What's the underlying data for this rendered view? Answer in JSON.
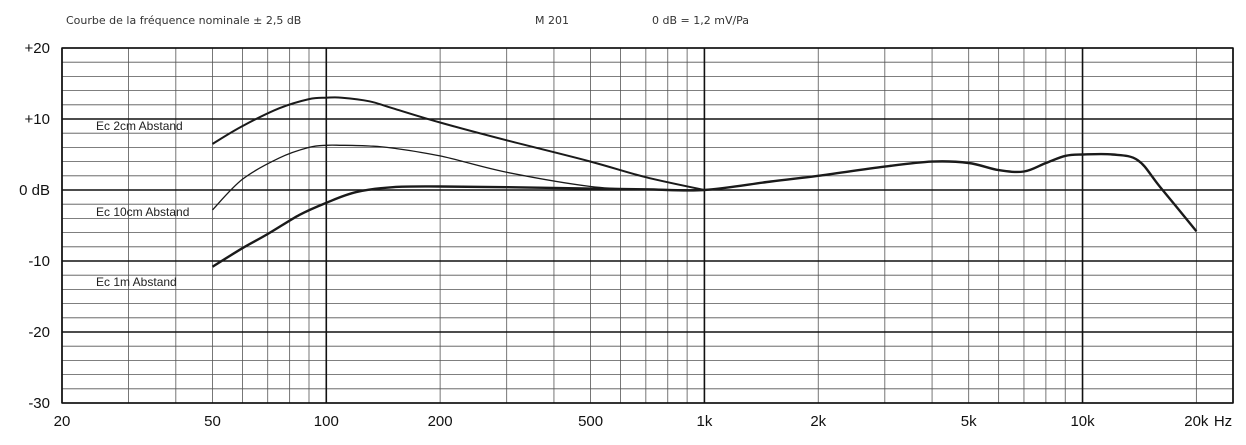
{
  "chart_data": {
    "type": "line",
    "header": {
      "left": "Courbe de la fréquence nominale ± 2,5 dB",
      "middle": "M 201",
      "right": "0 dB = 1,2 mV/Pa"
    },
    "x_scale": "log",
    "xlim": [
      20,
      25000
    ],
    "ylim": [
      -30,
      20
    ],
    "x_ticks": [
      {
        "value": 20,
        "label": "20"
      },
      {
        "value": 50,
        "label": "50"
      },
      {
        "value": 100,
        "label": "100"
      },
      {
        "value": 200,
        "label": "200"
      },
      {
        "value": 500,
        "label": "500"
      },
      {
        "value": 1000,
        "label": "1k"
      },
      {
        "value": 2000,
        "label": "2k"
      },
      {
        "value": 5000,
        "label": "5k"
      },
      {
        "value": 10000,
        "label": "10k"
      },
      {
        "value": 20000,
        "label": "20k"
      }
    ],
    "x_unit": "Hz",
    "y_ticks": [
      {
        "value": 20,
        "label": "+20"
      },
      {
        "value": 10,
        "label": "+10"
      },
      {
        "value": 0,
        "label": "0 dB"
      },
      {
        "value": -10,
        "label": "-10"
      },
      {
        "value": -20,
        "label": "-20"
      },
      {
        "value": -30,
        "label": "-30"
      }
    ],
    "grid": true,
    "series": [
      {
        "name": "2cm Abstand",
        "curve_label": "Ec 2cm Abstand",
        "x": [
          50,
          60,
          75,
          90,
          100,
          110,
          130,
          150,
          200,
          300,
          500,
          700,
          1000
        ],
        "y": [
          6.5,
          9.0,
          11.5,
          12.8,
          13.0,
          13.0,
          12.5,
          11.5,
          9.5,
          7.0,
          4.0,
          1.8,
          0
        ]
      },
      {
        "name": "10cm Abstand",
        "curve_label": "Ec 10cm Abstand",
        "x": [
          50,
          60,
          75,
          90,
          100,
          110,
          130,
          150,
          200,
          300,
          500,
          700,
          1000
        ],
        "y": [
          -2.8,
          1.5,
          4.5,
          6.0,
          6.3,
          6.3,
          6.2,
          5.9,
          4.8,
          2.5,
          0.5,
          0.1,
          0
        ]
      },
      {
        "name": "1m Abstand",
        "curve_label": "Ec 1m Abstand",
        "x": [
          50,
          60,
          70,
          85,
          100,
          120,
          150,
          200,
          300,
          500,
          700,
          1000,
          1500,
          2000,
          3000,
          4000,
          5000,
          6000,
          7000,
          8000,
          9000,
          10000,
          12000,
          14000,
          16000,
          20000
        ],
        "y": [
          -10.8,
          -8.2,
          -6.2,
          -3.5,
          -1.8,
          -0.3,
          0.4,
          0.5,
          0.4,
          0.2,
          0.1,
          0,
          1.2,
          2.0,
          3.3,
          4.0,
          3.8,
          2.8,
          2.6,
          3.8,
          4.8,
          5.0,
          5.0,
          4.2,
          0.5,
          -5.8
        ]
      }
    ]
  }
}
